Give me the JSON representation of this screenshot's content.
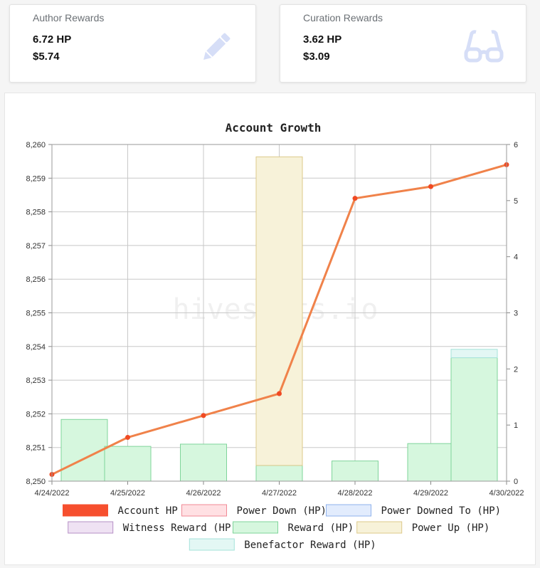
{
  "cards": [
    {
      "label": "Author Rewards",
      "hp": "6.72 HP",
      "usd": "$5.74",
      "icon": "pencil-icon"
    },
    {
      "label": "Curation Rewards",
      "hp": "3.62 HP",
      "usd": "$3.09",
      "icon": "glasses-icon"
    }
  ],
  "watermark": "hivestats.io",
  "chart_data": {
    "type": "bar",
    "title": "Account Growth",
    "x": [
      "4/24/2022",
      "4/25/2022",
      "4/26/2022",
      "4/27/2022",
      "4/28/2022",
      "4/29/2022",
      "4/30/2022"
    ],
    "y_left": {
      "ticks": [
        "8,250",
        "8,251",
        "8,252",
        "8,253",
        "8,254",
        "8,255",
        "8,256",
        "8,257",
        "8,258",
        "8,259",
        "8,260"
      ],
      "range": [
        8250,
        8260
      ]
    },
    "y_right": {
      "ticks": [
        "0",
        "1",
        "2",
        "3",
        "4",
        "5",
        "6"
      ],
      "range": [
        0,
        6
      ]
    },
    "grid": true,
    "legend_position": "bottom",
    "line_series": {
      "name": "Account HP",
      "axis": "left",
      "color": "#f0824a",
      "point_color": "#f04a23",
      "values": [
        8250.2,
        8251.3,
        8251.95,
        8252.6,
        8258.4,
        8258.75,
        8259.4
      ]
    },
    "bar_series": [
      {
        "name": "Reward (HP)",
        "axis": "right",
        "color": "#d6f7de",
        "border": "#7fd49a",
        "values": [
          1.1,
          0.62,
          0.66,
          0.28,
          0.36,
          0.67,
          2.2
        ]
      },
      {
        "name": "Power Up (HP)",
        "axis": "right",
        "color": "#f7f2d9",
        "border": "#dcc98a",
        "values": [
          0,
          0,
          0,
          5.5,
          0,
          0,
          0
        ]
      },
      {
        "name": "Benefactor Reward (HP)",
        "axis": "right",
        "color": "#e3f7f4",
        "border": "#a6e3da",
        "values": [
          0,
          0,
          0,
          0,
          0,
          0,
          0.15
        ]
      }
    ],
    "legend": [
      {
        "name": "Account HP",
        "color": "#f64f2e",
        "border": "#f64f2e"
      },
      {
        "name": "Power Down (HP)",
        "color": "#ffe0e3",
        "border": "#f08a96"
      },
      {
        "name": "Power Downed To (HP)",
        "color": "#e2ecfd",
        "border": "#8fb2ec"
      },
      {
        "name": "Witness Reward (HP)",
        "color": "#efe2f3",
        "border": "#b690c6"
      },
      {
        "name": "Reward (HP)",
        "color": "#d6f7de",
        "border": "#7fd49a"
      },
      {
        "name": "Power Up (HP)",
        "color": "#f7f2d9",
        "border": "#dcc98a"
      },
      {
        "name": "Benefactor Reward (HP)",
        "color": "#e3f7f4",
        "border": "#a6e3da"
      }
    ]
  }
}
